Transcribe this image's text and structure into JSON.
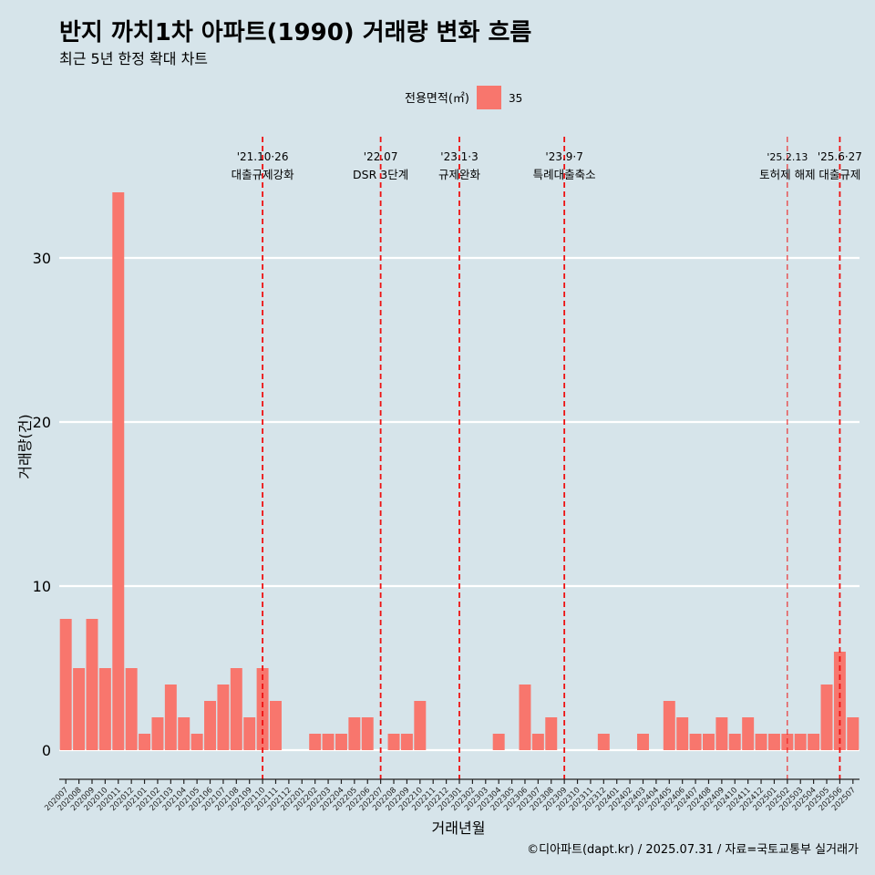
{
  "chart_data": {
    "type": "bar",
    "title": "반지 까치1차 아파트(1990) 거래량 변화 흐름",
    "subtitle": "최근 5년 한정 확대 차트",
    "xlabel": "거래년월",
    "ylabel": "거래량(건)",
    "caption": "©디아파트(dapt.kr) / 2025.07.31 / 자료=국토교통부 실거래가",
    "legend": {
      "title": "전용면적(㎡)",
      "position": "top",
      "items": [
        {
          "label": "35",
          "color": "#f8766d"
        }
      ]
    },
    "ylim": [
      0,
      34
    ],
    "yticks": [
      0,
      10,
      20,
      30
    ],
    "grid": true,
    "bar_color": "#f8766d",
    "categories": [
      "202007",
      "202008",
      "202009",
      "202010",
      "202011",
      "202012",
      "202101",
      "202102",
      "202103",
      "202104",
      "202105",
      "202106",
      "202107",
      "202108",
      "202109",
      "202110",
      "202111",
      "202112",
      "202201",
      "202202",
      "202203",
      "202204",
      "202205",
      "202206",
      "202207",
      "202208",
      "202209",
      "202210",
      "202211",
      "202212",
      "202301",
      "202302",
      "202303",
      "202304",
      "202305",
      "202306",
      "202307",
      "202308",
      "202309",
      "202310",
      "202311",
      "202312",
      "202401",
      "202402",
      "202403",
      "202404",
      "202405",
      "202406",
      "202407",
      "202408",
      "202409",
      "202410",
      "202411",
      "202412",
      "202501",
      "202502",
      "202503",
      "202504",
      "202505",
      "202506",
      "202507"
    ],
    "series": [
      {
        "values": [
          8,
          5,
          8,
          5,
          34,
          5,
          1,
          2,
          4,
          2,
          1,
          3,
          4,
          5,
          2,
          5,
          3,
          0,
          0,
          1,
          1,
          1,
          2,
          2,
          0,
          1,
          1,
          3,
          0,
          0,
          0,
          0,
          0,
          1,
          0,
          4,
          1,
          2,
          0,
          0,
          0,
          1,
          0,
          0,
          1,
          0,
          3,
          2,
          1,
          1,
          2,
          1,
          2,
          1,
          1,
          1,
          1,
          1,
          4,
          6,
          2
        ]
      }
    ],
    "annotations": [
      {
        "category": "202110",
        "line1": "'21.10·26",
        "line2": "대출규제강화",
        "style": "dashed"
      },
      {
        "category": "202207",
        "line1": "'22.07",
        "line2": "DSR 3단계",
        "style": "dashed"
      },
      {
        "category": "202301",
        "line1": "'23.1·3",
        "line2": "규제완화",
        "style": "dashed"
      },
      {
        "category": "202309",
        "line1": "'23.9·7",
        "line2": "특례대출축소",
        "style": "dashed"
      },
      {
        "category": "202502",
        "line1": "'25.2.13",
        "line2": "토허제 해제",
        "style": "dashed-thin"
      },
      {
        "category": "202506",
        "line1": "'25.6·27",
        "line2": "대출규제",
        "style": "dashed"
      }
    ]
  }
}
